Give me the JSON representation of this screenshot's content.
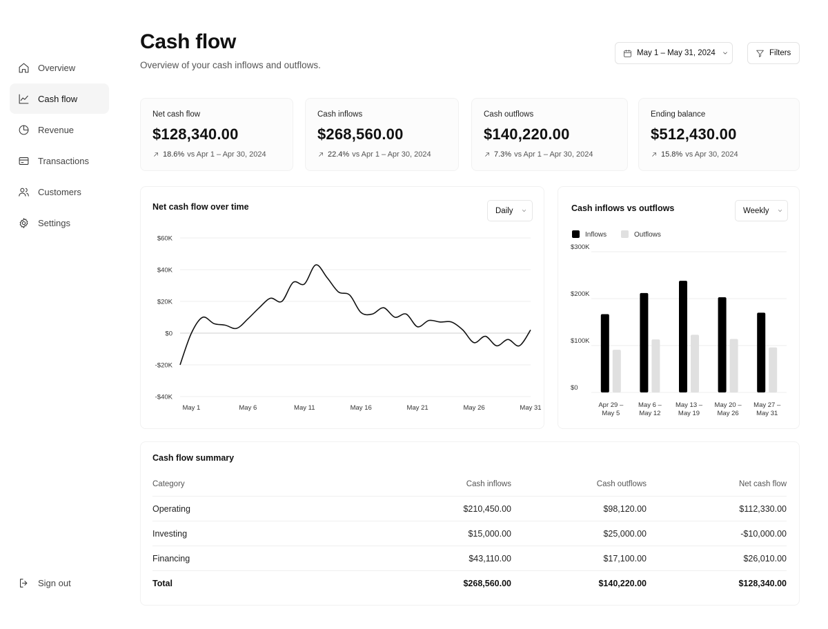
{
  "sidebar": {
    "items": [
      {
        "label": "Overview",
        "icon": "home-icon"
      },
      {
        "label": "Cash flow",
        "icon": "trend-line-icon",
        "active": true
      },
      {
        "label": "Revenue",
        "icon": "pie-chart-icon"
      },
      {
        "label": "Transactions",
        "icon": "credit-card-icon"
      },
      {
        "label": "Customers",
        "icon": "users-icon"
      },
      {
        "label": "Settings",
        "icon": "gear-icon"
      }
    ],
    "sign_out": "Sign out"
  },
  "header": {
    "title": "Cash flow",
    "subtitle": "Overview of your cash inflows and outflows.",
    "date_range": "May 1 – May 31, 2024",
    "filters_label": "Filters"
  },
  "kpis": [
    {
      "label": "Net cash flow",
      "value": "$128,340.00",
      "pct": "18.6%",
      "compare": "vs Apr 1 – Apr 30, 2024"
    },
    {
      "label": "Cash inflows",
      "value": "$268,560.00",
      "pct": "22.4%",
      "compare": "vs Apr 1 – Apr 30, 2024"
    },
    {
      "label": "Cash outflows",
      "value": "$140,220.00",
      "pct": "7.3%",
      "compare": "vs Apr 1 – Apr 30, 2024"
    },
    {
      "label": "Ending balance",
      "value": "$512,430.00",
      "pct": "15.8%",
      "compare": "vs Apr 30, 2024"
    }
  ],
  "line_card": {
    "title": "Net cash flow over time",
    "select": "Daily"
  },
  "bar_card": {
    "title": "Cash inflows vs outflows",
    "select": "Weekly"
  },
  "chart_data": [
    {
      "type": "line",
      "title": "Net cash flow over time",
      "ylim": [
        -40000,
        60000
      ],
      "y_ticks": [
        60000,
        40000,
        20000,
        0,
        -20000,
        -40000
      ],
      "y_tick_labels": [
        "$60K",
        "$40K",
        "$20K",
        "$0",
        "-$20K",
        "-$40K"
      ],
      "x_tick_labels": [
        "May 1",
        "May 6",
        "May 11",
        "May 16",
        "May 21",
        "May 26",
        "May 31"
      ],
      "x_tick_days": [
        1,
        6,
        11,
        16,
        21,
        26,
        31
      ],
      "grid": true,
      "x": [
        0,
        1,
        2,
        3,
        4,
        5,
        6,
        7,
        8,
        9,
        10,
        11,
        12,
        13,
        14,
        15,
        16,
        17,
        18,
        19,
        20,
        21,
        22,
        23,
        24,
        25,
        26,
        27,
        28,
        29,
        30,
        31
      ],
      "series": [
        {
          "values": [
            -20000,
            0,
            10000,
            6000,
            5000,
            3000,
            9000,
            16000,
            22000,
            20000,
            32000,
            31000,
            43000,
            35000,
            26000,
            24000,
            13000,
            12000,
            16000,
            10000,
            12000,
            4000,
            8000,
            7000,
            7000,
            2000,
            -6000,
            -2000,
            -8000,
            -4000,
            -8000,
            2000
          ]
        }
      ]
    },
    {
      "type": "bar",
      "title": "Cash inflows vs outflows",
      "ylim": [
        0,
        300000
      ],
      "y_ticks": [
        0,
        100000,
        200000,
        300000
      ],
      "y_tick_labels": [
        "$0",
        "$100K",
        "$200K",
        "$300K"
      ],
      "legend": "top-left",
      "grid": true,
      "categories": [
        [
          "Apr 29 –",
          "May 5"
        ],
        [
          "May 6 –",
          "May 12"
        ],
        [
          "May 13 –",
          "May 19"
        ],
        [
          "May 20 –",
          "May 26"
        ],
        [
          "May 27 –",
          "May 31"
        ]
      ],
      "series": [
        {
          "name": "Inflows",
          "color": "#000000",
          "values": [
            167000,
            212000,
            238000,
            203000,
            170000
          ]
        },
        {
          "name": "Outflows",
          "color": "#e0e0e0",
          "values": [
            91000,
            113000,
            123000,
            114000,
            96000
          ]
        }
      ]
    }
  ],
  "summary": {
    "title": "Cash flow summary",
    "headers": [
      "Category",
      "Cash inflows",
      "Cash outflows",
      "Net cash flow"
    ],
    "rows": [
      [
        "Operating",
        "$210,450.00",
        "$98,120.00",
        "$112,330.00"
      ],
      [
        "Investing",
        "$15,000.00",
        "$25,000.00",
        "-$10,000.00"
      ],
      [
        "Financing",
        "$43,110.00",
        "$17,100.00",
        "$26,010.00"
      ]
    ],
    "total": [
      "Total",
      "$268,560.00",
      "$140,220.00",
      "$128,340.00"
    ]
  }
}
